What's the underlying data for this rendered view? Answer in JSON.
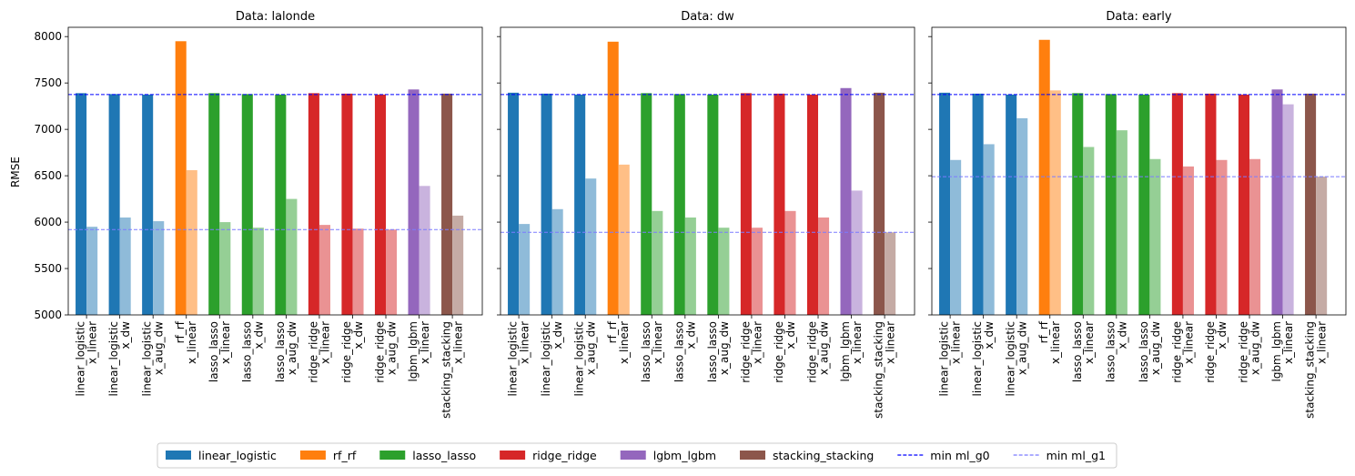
{
  "chart_data": {
    "type": "bar",
    "ylabel": "RMSE",
    "ylim": [
      5000,
      8100
    ],
    "yticks": [
      5000,
      5500,
      6000,
      6500,
      7000,
      7500,
      8000
    ],
    "ytick_labels": [
      "5000",
      "5500",
      "6000",
      "6500",
      "7000",
      "7500",
      "8000"
    ],
    "categories": [
      {
        "model": "linear_logistic",
        "feature": "x_linear",
        "group": "linear_logistic"
      },
      {
        "model": "linear_logistic",
        "feature": "x_dw",
        "group": "linear_logistic"
      },
      {
        "model": "linear_logistic",
        "feature": "x_aug_dw",
        "group": "linear_logistic"
      },
      {
        "model": "rf_rf",
        "feature": "x_linear",
        "group": "rf_rf"
      },
      {
        "model": "lasso_lasso",
        "feature": "x_linear",
        "group": "lasso_lasso"
      },
      {
        "model": "lasso_lasso",
        "feature": "x_dw",
        "group": "lasso_lasso"
      },
      {
        "model": "lasso_lasso",
        "feature": "x_aug_dw",
        "group": "lasso_lasso"
      },
      {
        "model": "ridge_ridge",
        "feature": "x_linear",
        "group": "ridge_ridge"
      },
      {
        "model": "ridge_ridge",
        "feature": "x_dw",
        "group": "ridge_ridge"
      },
      {
        "model": "ridge_ridge",
        "feature": "x_aug_dw",
        "group": "ridge_ridge"
      },
      {
        "model": "lgbm_lgbm",
        "feature": "x_linear",
        "group": "lgbm_lgbm"
      },
      {
        "model": "stacking_stacking",
        "feature": "x_linear",
        "group": "stacking_stacking"
      }
    ],
    "group_colors": {
      "linear_logistic": "#1f77b4",
      "rf_rf": "#ff7f0e",
      "lasso_lasso": "#2ca02c",
      "ridge_ridge": "#d62728",
      "lgbm_lgbm": "#9467bd",
      "stacking_stacking": "#8c564b"
    },
    "light_colors": {
      "linear_logistic": "#8fbbd9",
      "rf_rf": "#ffbf86",
      "lasso_lasso": "#95cf95",
      "ridge_ridge": "#ea9293",
      "lgbm_lgbm": "#c9b3de",
      "stacking_stacking": "#c5aba5"
    },
    "panels": [
      {
        "title": "Data: lalonde",
        "ml_g0": [
          7390,
          7380,
          7375,
          7950,
          7390,
          7380,
          7375,
          7390,
          7385,
          7375,
          7430,
          7385
        ],
        "ml_g1": [
          5950,
          6050,
          6010,
          6560,
          6000,
          5940,
          6250,
          5970,
          5930,
          5920,
          6390,
          6070
        ],
        "min_ml_g0": 7375,
        "min_ml_g1": 5920
      },
      {
        "title": "Data: dw",
        "ml_g0": [
          7395,
          7385,
          7375,
          7945,
          7390,
          7380,
          7375,
          7390,
          7385,
          7375,
          7445,
          7395
        ],
        "ml_g1": [
          5980,
          6140,
          6470,
          6620,
          6120,
          6050,
          5940,
          5940,
          6120,
          6050,
          6340,
          5890
        ],
        "min_ml_g0": 7375,
        "min_ml_g1": 5890
      },
      {
        "title": "Data: early",
        "ml_g0": [
          7395,
          7385,
          7375,
          7965,
          7390,
          7380,
          7375,
          7390,
          7385,
          7375,
          7430,
          7385
        ],
        "ml_g1": [
          6670,
          6840,
          7120,
          7420,
          6810,
          6990,
          6680,
          6600,
          6670,
          6680,
          7270,
          6490
        ],
        "min_ml_g0": 7375,
        "min_ml_g1": 6490
      }
    ],
    "legend": {
      "placement": "bottom-center",
      "entries": [
        {
          "label": "linear_logistic",
          "kind": "patch",
          "color": "#1f77b4"
        },
        {
          "label": "rf_rf",
          "kind": "patch",
          "color": "#ff7f0e"
        },
        {
          "label": "lasso_lasso",
          "kind": "patch",
          "color": "#2ca02c"
        },
        {
          "label": "ridge_ridge",
          "kind": "patch",
          "color": "#d62728"
        },
        {
          "label": "lgbm_lgbm",
          "kind": "patch",
          "color": "#9467bd"
        },
        {
          "label": "stacking_stacking",
          "kind": "patch",
          "color": "#8c564b"
        },
        {
          "label": "min ml_g0",
          "kind": "line",
          "color": "#0000ff"
        },
        {
          "label": "min ml_g1",
          "kind": "line",
          "color": "#7b7bff"
        }
      ]
    }
  }
}
